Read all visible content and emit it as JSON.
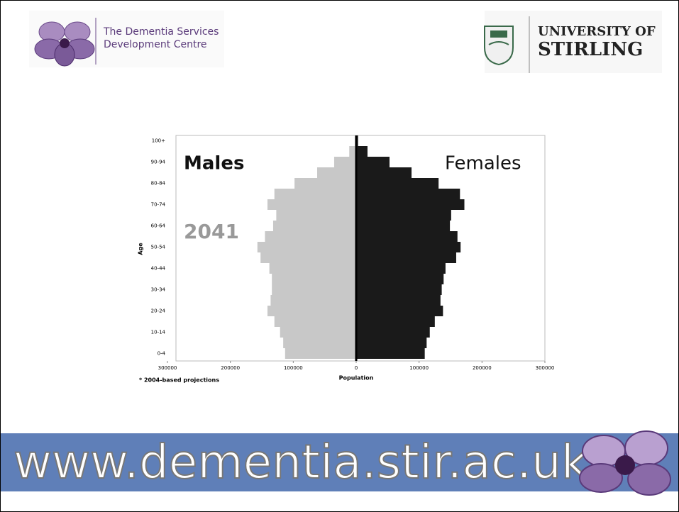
{
  "header": {
    "left_logo_lines": [
      "The Dementia Services",
      "Development Centre"
    ],
    "right_logo_lines": [
      "UNIVERSITY OF",
      "STIRLING"
    ]
  },
  "footer": {
    "url": "www.dementia.stir.ac.uk"
  },
  "chart_data": {
    "type": "pyramid",
    "subtitle": "2041",
    "y_label": "Age",
    "x_label": "Population",
    "note": "* 2004-based projections",
    "categories": [
      "0-4",
      null,
      "10-14",
      null,
      "20-24",
      null,
      "30-34",
      null,
      "40-44",
      null,
      "50-54",
      null,
      "60-64",
      null,
      "70-74",
      null,
      "80-84",
      null,
      "90-94",
      null,
      "100+"
    ],
    "series": [
      {
        "name": "Males",
        "color": "#c8c8c8",
        "values": [
          113000,
          116000,
          121000,
          130000,
          141000,
          136000,
          134000,
          134000,
          138000,
          152000,
          157000,
          145000,
          132000,
          127000,
          141000,
          130000,
          98000,
          62000,
          35000,
          11000,
          2000
        ]
      },
      {
        "name": "Females",
        "color": "#1a1a1a",
        "values": [
          109000,
          112000,
          117000,
          125000,
          138000,
          134000,
          136000,
          139000,
          142000,
          159000,
          166000,
          161000,
          149000,
          151000,
          172000,
          165000,
          131000,
          88000,
          53000,
          18000,
          3000
        ]
      }
    ],
    "xlim": [
      -300000,
      300000
    ],
    "xticks": [
      {
        "value": -300000,
        "label": "300000"
      },
      {
        "value": -200000,
        "label": "200000"
      },
      {
        "value": -100000,
        "label": "100000"
      },
      0,
      100000,
      200000,
      300000
    ]
  }
}
